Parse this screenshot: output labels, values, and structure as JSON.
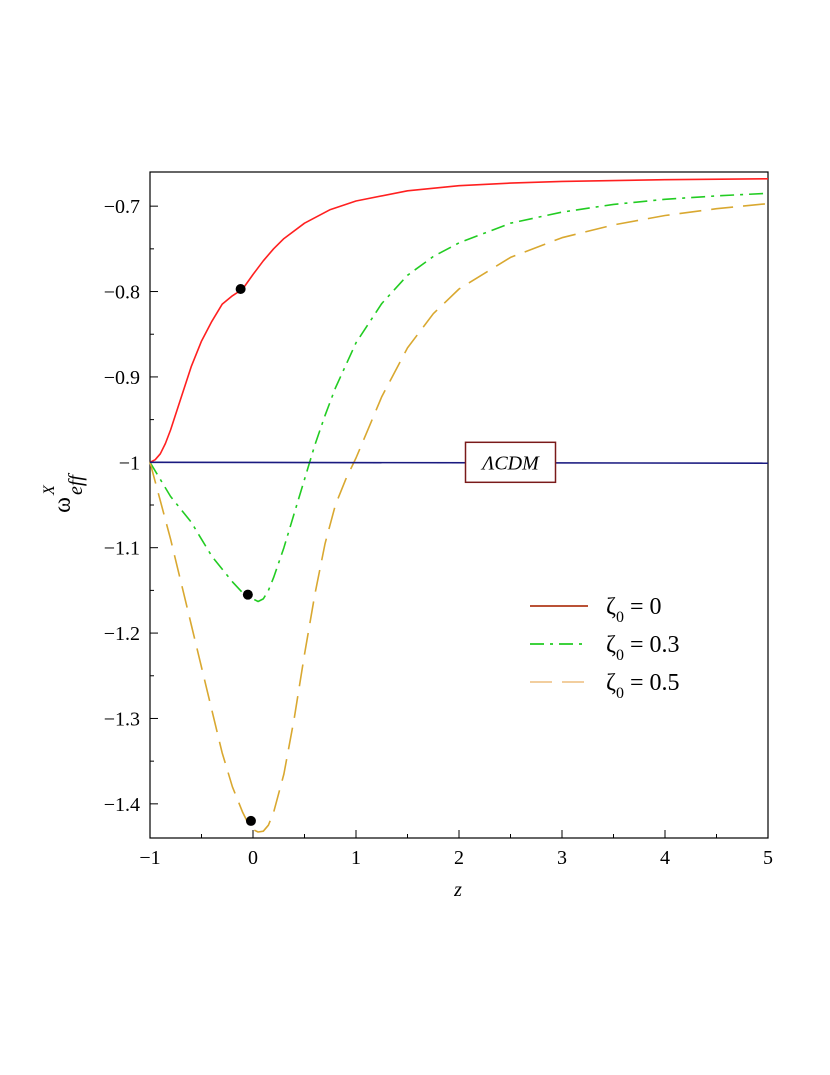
{
  "chart_data": {
    "type": "line",
    "xlabel": "z",
    "ylabel": {
      "base": "ω",
      "superscript": "X",
      "subscript": "eff"
    },
    "xlim": [
      -1,
      5
    ],
    "ylim": [
      -1.44,
      -0.66
    ],
    "x_ticks": [
      -1,
      0,
      1,
      2,
      3,
      4,
      5
    ],
    "x_tick_labels": [
      "−1",
      "0",
      "1",
      "2",
      "3",
      "4",
      "5"
    ],
    "y_ticks": [
      -0.7,
      -0.8,
      -0.9,
      -1.0,
      -1.1,
      -1.2,
      -1.3,
      -1.4
    ],
    "y_tick_labels": [
      "−0.7",
      "−0.8",
      "−0.9",
      "−1",
      "−1.1",
      "−1.2",
      "−1.3",
      "−1.4"
    ],
    "grid": false,
    "legend_position": "right-middle",
    "annotation": {
      "text": "ΛCDM",
      "x": 2.5,
      "y": -1.0
    },
    "series": [
      {
        "legend_symbol": "ζ",
        "legend_sub": "0",
        "legend_value": " = 0",
        "color": "#ff2020",
        "legend_color": "#b03a1a",
        "dash": "solid",
        "x": [
          -1,
          -0.95,
          -0.9,
          -0.85,
          -0.8,
          -0.7,
          -0.6,
          -0.5,
          -0.4,
          -0.3,
          -0.2,
          -0.1,
          0,
          0.1,
          0.2,
          0.3,
          0.5,
          0.75,
          1,
          1.5,
          2,
          2.5,
          3,
          4,
          5
        ],
        "y": [
          -1.0,
          -0.997,
          -0.99,
          -0.978,
          -0.962,
          -0.925,
          -0.888,
          -0.858,
          -0.835,
          -0.815,
          -0.805,
          -0.797,
          -0.78,
          -0.764,
          -0.75,
          -0.738,
          -0.72,
          -0.704,
          -0.694,
          -0.682,
          -0.676,
          -0.673,
          -0.671,
          -0.669,
          -0.668
        ]
      },
      {
        "legend_symbol": "ζ",
        "legend_sub": "0",
        "legend_value": " = 0.3",
        "color": "#22cc22",
        "legend_color": "#22cc22",
        "dash": "dashdot",
        "x": [
          -1,
          -0.9,
          -0.8,
          -0.7,
          -0.6,
          -0.5,
          -0.4,
          -0.3,
          -0.2,
          -0.1,
          0,
          0.05,
          0.1,
          0.15,
          0.2,
          0.3,
          0.4,
          0.5,
          0.6,
          0.7,
          0.8,
          1,
          1.25,
          1.5,
          1.75,
          2,
          2.5,
          3,
          3.5,
          4,
          4.5,
          5
        ],
        "y": [
          -1.0,
          -1.02,
          -1.04,
          -1.055,
          -1.07,
          -1.09,
          -1.11,
          -1.125,
          -1.14,
          -1.153,
          -1.16,
          -1.163,
          -1.16,
          -1.15,
          -1.135,
          -1.1,
          -1.06,
          -1.02,
          -0.98,
          -0.945,
          -0.913,
          -0.86,
          -0.814,
          -0.781,
          -0.759,
          -0.743,
          -0.72,
          -0.707,
          -0.698,
          -0.692,
          -0.688,
          -0.685
        ]
      },
      {
        "legend_symbol": "ζ",
        "legend_sub": "0",
        "legend_value": " = 0.5",
        "color": "#d9a830",
        "legend_color": "#f0c890",
        "dash": "dashed",
        "x": [
          -1,
          -0.9,
          -0.8,
          -0.7,
          -0.6,
          -0.5,
          -0.4,
          -0.3,
          -0.2,
          -0.1,
          -0.05,
          0,
          0.05,
          0.1,
          0.15,
          0.2,
          0.3,
          0.4,
          0.5,
          0.6,
          0.7,
          0.8,
          0.9,
          1,
          1.25,
          1.5,
          1.75,
          2,
          2.5,
          3,
          3.5,
          4,
          4.5,
          5
        ],
        "y": [
          -1.0,
          -1.045,
          -1.09,
          -1.14,
          -1.19,
          -1.24,
          -1.29,
          -1.34,
          -1.38,
          -1.41,
          -1.422,
          -1.43,
          -1.433,
          -1.432,
          -1.425,
          -1.41,
          -1.365,
          -1.3,
          -1.225,
          -1.155,
          -1.095,
          -1.05,
          -1.02,
          -0.995,
          -0.923,
          -0.866,
          -0.826,
          -0.797,
          -0.76,
          -0.737,
          -0.722,
          -0.711,
          -0.703,
          -0.697
        ]
      },
      {
        "legend_symbol": "",
        "legend_sub": "",
        "legend_value": "",
        "color": "#1a1a80",
        "legend_color": "#1a1a80",
        "dash": "solid",
        "x": [
          -1,
          5
        ],
        "y": [
          -1.0,
          -1.001
        ]
      }
    ],
    "markers": [
      {
        "x": -0.12,
        "y": -0.797
      },
      {
        "x": -0.05,
        "y": -1.155
      },
      {
        "x": -0.02,
        "y": -1.42
      }
    ]
  }
}
